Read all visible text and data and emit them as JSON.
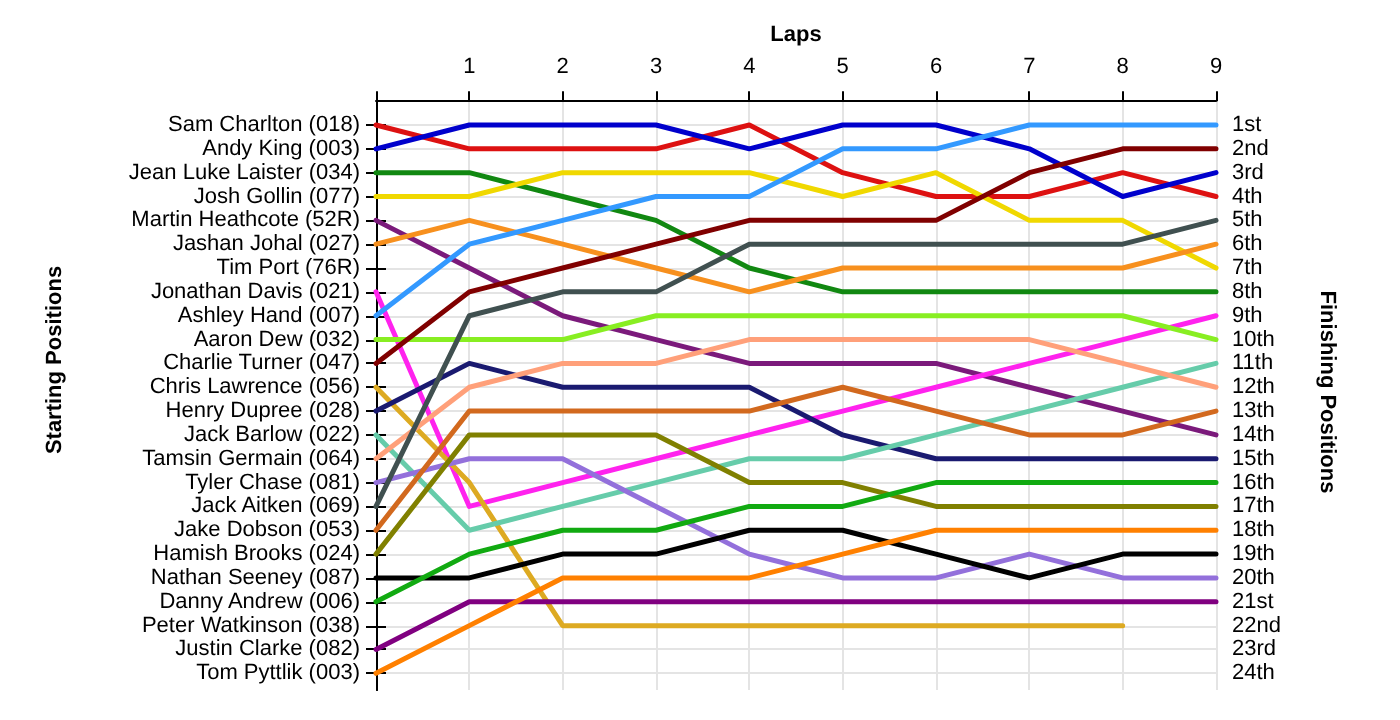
{
  "chart_data": {
    "type": "line",
    "xlabel": "Laps",
    "ylabel": "Finishing Positions",
    "annotations": [
      "Starting Positions"
    ],
    "x": [
      0,
      1,
      2,
      3,
      4,
      5,
      6,
      7,
      8,
      9
    ],
    "xlim": [
      0,
      9
    ],
    "xticks": [
      {
        "value": 0,
        "label": null
      },
      1,
      2,
      3,
      4,
      5,
      6,
      7,
      8,
      9
    ],
    "y_categories": [
      "Sam Charlton (018)",
      "Andy King (003)",
      "Jean Luke Laister (034)",
      "Josh Gollin (077)",
      "Martin Heathcote (52R)",
      "Jashan Johal (027)",
      "Tim Port (76R)",
      "Jonathan Davis (021)",
      "Ashley Hand (007)",
      "Aaron Dew (032)",
      "Charlie Turner (047)",
      "Chris Lawrence (056)",
      "Henry Dupree (028)",
      "Jack Barlow (022)",
      "Tamsin Germain (064)",
      "Tyler Chase (081)",
      "Jack Aitken (069)",
      "Jake Dobson (053)",
      "Hamish Brooks (024)",
      "Nathan Seeney (087)",
      "Danny Andrew (006)",
      "Peter Watkinson (038)",
      "Justin Clarke (082)",
      "Tom Pyttlik (003)"
    ],
    "ylim": [
      24.7,
      -0.3
    ],
    "yticks": [
      {
        "value": 1,
        "label": "1st"
      },
      {
        "value": 2,
        "label": "2nd"
      },
      {
        "value": 3,
        "label": "3rd"
      },
      {
        "value": 4,
        "label": "4th"
      },
      {
        "value": 5,
        "label": "5th"
      },
      {
        "value": 6,
        "label": "6th"
      },
      {
        "value": 7,
        "label": "7th"
      },
      {
        "value": 8,
        "label": "8th"
      },
      {
        "value": 9,
        "label": "9th"
      },
      {
        "value": 10,
        "label": "10th"
      },
      {
        "value": 11,
        "label": "11th"
      },
      {
        "value": 12,
        "label": "12th"
      },
      {
        "value": 13,
        "label": "13th"
      },
      {
        "value": 14,
        "label": "14th"
      },
      {
        "value": 15,
        "label": "15th"
      },
      {
        "value": 16,
        "label": "16th"
      },
      {
        "value": 17,
        "label": "17th"
      },
      {
        "value": 18,
        "label": "18th"
      },
      {
        "value": 19,
        "label": "19th"
      },
      {
        "value": 20,
        "label": "20th"
      },
      {
        "value": 21,
        "label": "21st"
      },
      {
        "value": 22,
        "label": "22nd"
      },
      {
        "value": 23,
        "label": "23rd"
      },
      {
        "value": 24,
        "label": "24th"
      }
    ],
    "grid": true,
    "series": [
      {
        "color": "#dd1111",
        "values": [
          1,
          2,
          2,
          2,
          1,
          3,
          4,
          4,
          3,
          4
        ]
      },
      {
        "color": "#0000cc",
        "values": [
          2,
          1,
          1,
          1,
          2,
          1,
          1,
          2,
          4,
          3
        ]
      },
      {
        "color": "#118811",
        "values": [
          3,
          3,
          4,
          5,
          7,
          8,
          8,
          8,
          8,
          8
        ]
      },
      {
        "color": "#f0d800",
        "values": [
          4,
          4,
          3,
          3,
          3,
          4,
          3,
          5,
          5,
          7
        ]
      },
      {
        "color": "#7b1a7b",
        "values": [
          5,
          7,
          9,
          10,
          11,
          11,
          11,
          12,
          13,
          14
        ]
      },
      {
        "color": "#f7901e",
        "values": [
          6,
          5,
          6,
          7,
          8,
          7,
          7,
          7,
          7,
          6
        ]
      },
      {
        "color": "#ff22ee",
        "values": [
          8,
          17,
          16,
          15,
          14,
          13,
          12,
          11,
          10,
          9
        ]
      },
      {
        "color": "#3399ff",
        "values": [
          9,
          6,
          5,
          4,
          4,
          2,
          2,
          1,
          1,
          1
        ]
      },
      {
        "color": "#88ee22",
        "values": [
          10,
          10,
          10,
          9,
          9,
          9,
          9,
          9,
          9,
          10
        ]
      },
      {
        "color": "#800000",
        "values": [
          11,
          8,
          7,
          6,
          5,
          5,
          5,
          3,
          2,
          2
        ]
      },
      {
        "color": "#ddaa22",
        "values": [
          12,
          16,
          22,
          22,
          22,
          22,
          22,
          22,
          22,
          null
        ]
      },
      {
        "color": "#1a1a70",
        "values": [
          13,
          11,
          12,
          12,
          12,
          14,
          15,
          15,
          15,
          15
        ]
      },
      {
        "color": "#66ccaa",
        "values": [
          14,
          18,
          17,
          16,
          15,
          15,
          14,
          13,
          12,
          11
        ]
      },
      {
        "color": "#ffa07a",
        "values": [
          15,
          12,
          11,
          11,
          10,
          10,
          10,
          10,
          11,
          12
        ]
      },
      {
        "color": "#9370db",
        "values": [
          16,
          15,
          15,
          17,
          19,
          20,
          20,
          19,
          20,
          20
        ]
      },
      {
        "color": "#405050",
        "values": [
          17,
          9,
          8,
          8,
          6,
          6,
          6,
          6,
          6,
          5
        ]
      },
      {
        "color": "#d2691e",
        "values": [
          18,
          13,
          13,
          13,
          13,
          12,
          13,
          14,
          14,
          13
        ]
      },
      {
        "color": "#808000",
        "values": [
          19,
          14,
          14,
          14,
          16,
          16,
          17,
          17,
          17,
          17
        ]
      },
      {
        "color": "#000000",
        "values": [
          20,
          20,
          19,
          19,
          18,
          18,
          19,
          20,
          19,
          19
        ]
      },
      {
        "color": "#11aa11",
        "values": [
          21,
          19,
          18,
          18,
          17,
          17,
          16,
          16,
          16,
          16
        ]
      },
      {
        "color": "#800080",
        "values": [
          23,
          21,
          21,
          21,
          21,
          21,
          21,
          21,
          21,
          21
        ]
      },
      {
        "color": "#ff8000",
        "values": [
          24,
          22,
          20,
          20,
          20,
          19,
          18,
          18,
          18,
          18
        ]
      }
    ]
  }
}
